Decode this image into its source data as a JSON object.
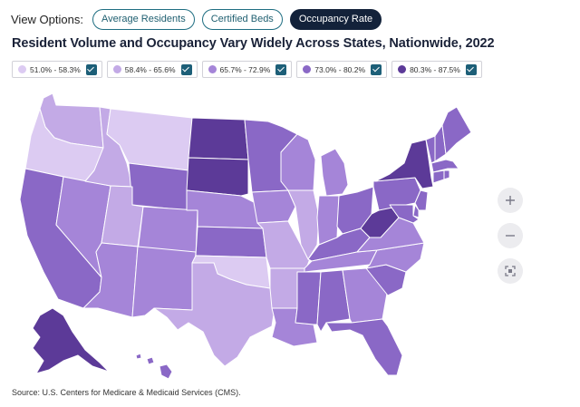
{
  "view_options": {
    "label": "View Options:",
    "buttons": [
      {
        "label": "Average Residents",
        "active": false
      },
      {
        "label": "Certified Beds",
        "active": false
      },
      {
        "label": "Occupancy Rate",
        "active": true
      }
    ]
  },
  "title": "Resident Volume and Occupancy Vary Widely Across States, Nationwide, 2022",
  "legend": [
    {
      "label": "51.0% - 58.3%",
      "color": "#dccbf2",
      "checked": true
    },
    {
      "label": "58.4% - 65.6%",
      "color": "#c3aae6",
      "checked": true
    },
    {
      "label": "65.7% - 72.9%",
      "color": "#a585d8",
      "checked": true
    },
    {
      "label": "73.0% - 80.2%",
      "color": "#8a68c6",
      "checked": true
    },
    {
      "label": "80.3% - 87.5%",
      "color": "#5c3a98",
      "checked": true
    }
  ],
  "map_data": {
    "bin_colors": [
      "#dccbf2",
      "#c3aae6",
      "#a585d8",
      "#8a68c6",
      "#5c3a98"
    ],
    "state_bins": {
      "WA": 1,
      "OR": 0,
      "CA": 3,
      "NV": 2,
      "ID": 1,
      "MT": 0,
      "WY": 3,
      "UT": 1,
      "AZ": 2,
      "NM": 2,
      "CO": 2,
      "ND": 4,
      "SD": 4,
      "NE": 2,
      "KS": 3,
      "OK": 0,
      "TX": 1,
      "MN": 3,
      "IA": 2,
      "MO": 1,
      "AR": 1,
      "LA": 2,
      "WI": 2,
      "IL": 1,
      "MI": 2,
      "IN": 2,
      "OH": 3,
      "KY": 3,
      "TN": 2,
      "MS": 3,
      "AL": 3,
      "GA": 2,
      "FL": 3,
      "SC": 3,
      "NC": 2,
      "VA": 2,
      "WV": 4,
      "PA": 3,
      "NY": 4,
      "ME": 3,
      "VT": 3,
      "NH": 3,
      "MA": 3,
      "RI": 3,
      "CT": 3,
      "NJ": 3,
      "DE": 3,
      "MD": 3,
      "AK": 4,
      "HI": 3
    }
  },
  "controls": {
    "zoom_in": "plus-icon",
    "zoom_out": "minus-icon",
    "reset": "fit-icon"
  },
  "source": "Source: U.S. Centers for Medicare & Medicaid Services (CMS)."
}
